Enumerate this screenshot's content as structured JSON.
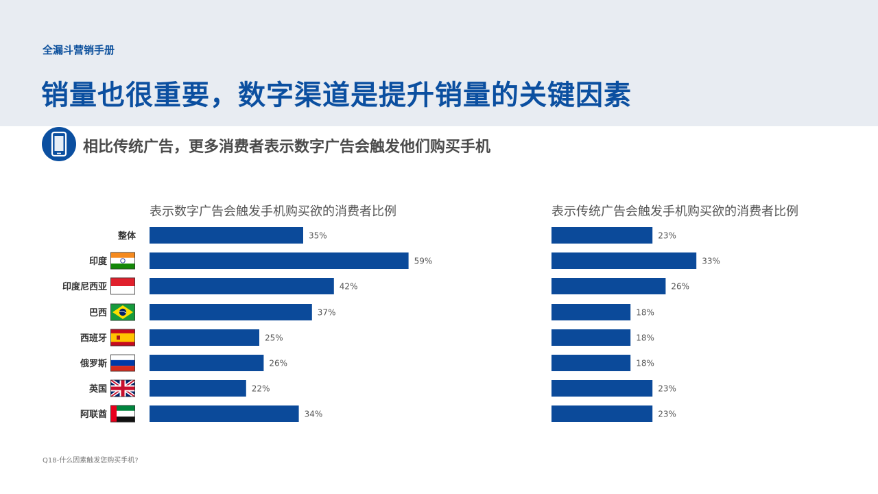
{
  "header": {
    "kicker": "全漏斗营销手册",
    "headline": "销量也很重要，数字渠道是提升销量的关键因素"
  },
  "subheading": {
    "icon": "smartphone-icon",
    "text": "相比传统广告，更多消费者表示数字广告会触发他们购买手机"
  },
  "colors": {
    "accent": "#0b4fa0",
    "bar": "#0b4a9a",
    "band": "#e8ecf2"
  },
  "chart_data": [
    {
      "type": "bar",
      "orientation": "horizontal",
      "title": "表示数字广告会触发手机购买欲的消费者比例",
      "categories": [
        "整体",
        "印度",
        "印度尼西亚",
        "巴西",
        "西班牙",
        "俄罗斯",
        "英国",
        "阿联酋"
      ],
      "category_icons": [
        "",
        "flag-india-icon",
        "flag-indonesia-icon",
        "flag-brazil-icon",
        "flag-spain-icon",
        "flag-russia-icon",
        "flag-uk-icon",
        "flag-uae-icon"
      ],
      "values": [
        35,
        59,
        42,
        37,
        25,
        26,
        22,
        34
      ],
      "value_labels": [
        "35%",
        "59%",
        "42%",
        "37%",
        "25%",
        "26%",
        "22%",
        "34%"
      ],
      "xlim": [
        0,
        100
      ],
      "grid": false
    },
    {
      "type": "bar",
      "orientation": "horizontal",
      "title": "表示传统广告会触发手机购买欲的消费者比例",
      "categories": [
        "整体",
        "印度",
        "印度尼西亚",
        "巴西",
        "西班牙",
        "俄罗斯",
        "英国",
        "阿联酋"
      ],
      "values": [
        23,
        33,
        26,
        18,
        18,
        18,
        23,
        23
      ],
      "value_labels": [
        "23%",
        "33%",
        "26%",
        "18%",
        "18%",
        "18%",
        "23%",
        "23%"
      ],
      "xlim": [
        0,
        100
      ],
      "grid": false
    }
  ],
  "footnote": "Q18-什么因素触发您购买手机?"
}
